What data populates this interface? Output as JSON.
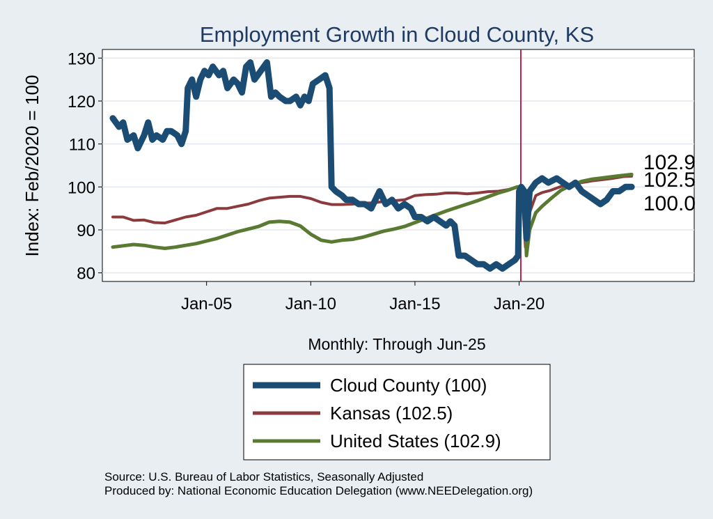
{
  "chart_data": {
    "type": "line",
    "title": "Employment Growth in Cloud  County, KS",
    "ylabel": "Index: Feb/2020 = 100",
    "xlabel": "Monthly: Through Jun-25",
    "ylim": [
      78,
      132
    ],
    "xlim": [
      2000.0,
      2028.4
    ],
    "yticks": [
      80,
      90,
      100,
      110,
      120,
      130
    ],
    "xticks": [
      {
        "value": 2005.0,
        "label": "Jan-05"
      },
      {
        "value": 2010.0,
        "label": "Jan-10"
      },
      {
        "value": 2015.0,
        "label": "Jan-15"
      },
      {
        "value": 2020.0,
        "label": "Jan-20"
      }
    ],
    "reference_line": {
      "x": 2020.08,
      "color": "#c0204a"
    },
    "series": [
      {
        "name": "Cloud  County (100)",
        "color": "#1b4c74",
        "width": 9,
        "end_label": "100.0",
        "points": [
          [
            2000.5,
            116
          ],
          [
            2000.8,
            114
          ],
          [
            2001.0,
            115
          ],
          [
            2001.2,
            111
          ],
          [
            2001.5,
            112
          ],
          [
            2001.7,
            109
          ],
          [
            2002.0,
            112
          ],
          [
            2002.2,
            115
          ],
          [
            2002.4,
            111
          ],
          [
            2002.6,
            112
          ],
          [
            2002.9,
            111
          ],
          [
            2003.1,
            113
          ],
          [
            2003.3,
            113
          ],
          [
            2003.6,
            112
          ],
          [
            2003.8,
            110
          ],
          [
            2004.0,
            113
          ],
          [
            2004.1,
            123
          ],
          [
            2004.3,
            125
          ],
          [
            2004.5,
            121
          ],
          [
            2004.7,
            125
          ],
          [
            2004.9,
            127
          ],
          [
            2005.1,
            126
          ],
          [
            2005.3,
            128
          ],
          [
            2005.6,
            126
          ],
          [
            2005.8,
            127
          ],
          [
            2006.0,
            123
          ],
          [
            2006.3,
            125
          ],
          [
            2006.5,
            124
          ],
          [
            2006.7,
            122
          ],
          [
            2006.9,
            128
          ],
          [
            2007.1,
            129
          ],
          [
            2007.3,
            125
          ],
          [
            2007.6,
            127
          ],
          [
            2007.9,
            129
          ],
          [
            2008.1,
            121
          ],
          [
            2008.3,
            122
          ],
          [
            2008.5,
            121
          ],
          [
            2008.8,
            120
          ],
          [
            2009.0,
            120
          ],
          [
            2009.3,
            121
          ],
          [
            2009.5,
            119
          ],
          [
            2009.7,
            121
          ],
          [
            2009.9,
            120
          ],
          [
            2010.1,
            124
          ],
          [
            2010.4,
            125
          ],
          [
            2010.7,
            126
          ],
          [
            2010.9,
            123
          ],
          [
            2011.0,
            100
          ],
          [
            2011.2,
            99
          ],
          [
            2011.5,
            98
          ],
          [
            2011.7,
            97
          ],
          [
            2012.0,
            97
          ],
          [
            2012.3,
            96
          ],
          [
            2012.6,
            96
          ],
          [
            2012.9,
            95
          ],
          [
            2013.1,
            97
          ],
          [
            2013.3,
            99
          ],
          [
            2013.6,
            96
          ],
          [
            2013.9,
            97
          ],
          [
            2014.2,
            95
          ],
          [
            2014.5,
            96
          ],
          [
            2014.8,
            95
          ],
          [
            2015.0,
            93
          ],
          [
            2015.3,
            93
          ],
          [
            2015.6,
            92
          ],
          [
            2015.9,
            93
          ],
          [
            2016.2,
            92
          ],
          [
            2016.5,
            91
          ],
          [
            2016.7,
            92
          ],
          [
            2016.9,
            91
          ],
          [
            2017.1,
            84
          ],
          [
            2017.4,
            84
          ],
          [
            2017.7,
            83
          ],
          [
            2018.0,
            82
          ],
          [
            2018.3,
            82
          ],
          [
            2018.6,
            81
          ],
          [
            2018.9,
            82
          ],
          [
            2019.2,
            81
          ],
          [
            2019.5,
            82
          ],
          [
            2019.8,
            83
          ],
          [
            2019.95,
            84
          ],
          [
            2020.0,
            99
          ],
          [
            2020.1,
            100
          ],
          [
            2020.25,
            99
          ],
          [
            2020.35,
            88
          ],
          [
            2020.5,
            99
          ],
          [
            2020.8,
            101
          ],
          [
            2021.1,
            102
          ],
          [
            2021.4,
            101
          ],
          [
            2021.8,
            102
          ],
          [
            2022.1,
            101
          ],
          [
            2022.4,
            100
          ],
          [
            2022.7,
            101
          ],
          [
            2023.0,
            99
          ],
          [
            2023.3,
            98
          ],
          [
            2023.6,
            97
          ],
          [
            2023.9,
            96
          ],
          [
            2024.2,
            97
          ],
          [
            2024.5,
            99
          ],
          [
            2024.8,
            99
          ],
          [
            2025.1,
            100
          ],
          [
            2025.4,
            100
          ]
        ]
      },
      {
        "name": "Kansas (102.5)",
        "color": "#8b3a3e",
        "width": 4,
        "end_label": "102.5",
        "points": [
          [
            2000.5,
            93
          ],
          [
            2001.0,
            93
          ],
          [
            2001.5,
            92.2
          ],
          [
            2002.0,
            92.3
          ],
          [
            2002.5,
            91.7
          ],
          [
            2003.0,
            91.6
          ],
          [
            2003.5,
            92.3
          ],
          [
            2004.0,
            93
          ],
          [
            2004.5,
            93.4
          ],
          [
            2005.0,
            94.2
          ],
          [
            2005.5,
            95
          ],
          [
            2006.0,
            95
          ],
          [
            2006.5,
            95.5
          ],
          [
            2007.0,
            96
          ],
          [
            2007.5,
            96.8
          ],
          [
            2008.0,
            97.4
          ],
          [
            2008.5,
            97.6
          ],
          [
            2009.0,
            97.8
          ],
          [
            2009.5,
            97.8
          ],
          [
            2010.0,
            97.3
          ],
          [
            2010.5,
            96.4
          ],
          [
            2011.0,
            95.9
          ],
          [
            2011.5,
            95.9
          ],
          [
            2012.0,
            96
          ],
          [
            2012.5,
            96.2
          ],
          [
            2013.0,
            96.3
          ],
          [
            2013.5,
            96.6
          ],
          [
            2014.0,
            96.8
          ],
          [
            2014.5,
            97.0
          ],
          [
            2015.0,
            98.0
          ],
          [
            2015.5,
            98.2
          ],
          [
            2016.0,
            98.3
          ],
          [
            2016.5,
            98.6
          ],
          [
            2017.0,
            98.6
          ],
          [
            2017.5,
            98.4
          ],
          [
            2018.0,
            98.6
          ],
          [
            2018.5,
            98.9
          ],
          [
            2019.0,
            99.0
          ],
          [
            2019.5,
            99.4
          ],
          [
            2019.9,
            100.0
          ],
          [
            2020.0,
            100
          ],
          [
            2020.15,
            98
          ],
          [
            2020.3,
            86
          ],
          [
            2020.5,
            94
          ],
          [
            2020.8,
            98
          ],
          [
            2021.1,
            98.7
          ],
          [
            2021.5,
            99.2
          ],
          [
            2022.0,
            100.1
          ],
          [
            2022.5,
            100.6
          ],
          [
            2023.0,
            101
          ],
          [
            2023.5,
            101.4
          ],
          [
            2024.0,
            101.7
          ],
          [
            2024.5,
            102.0
          ],
          [
            2025.0,
            102.4
          ],
          [
            2025.4,
            102.5
          ]
        ]
      },
      {
        "name": "United States (102.9)",
        "color": "#5a7a32",
        "width": 5,
        "end_label": "102.9",
        "points": [
          [
            2000.5,
            86.0
          ],
          [
            2001.0,
            86.3
          ],
          [
            2001.5,
            86.6
          ],
          [
            2002.0,
            86.4
          ],
          [
            2002.5,
            86.0
          ],
          [
            2003.0,
            85.7
          ],
          [
            2003.5,
            86.0
          ],
          [
            2004.0,
            86.4
          ],
          [
            2004.5,
            86.8
          ],
          [
            2005.0,
            87.4
          ],
          [
            2005.5,
            88.0
          ],
          [
            2006.0,
            88.8
          ],
          [
            2006.5,
            89.6
          ],
          [
            2007.0,
            90.2
          ],
          [
            2007.5,
            90.8
          ],
          [
            2008.0,
            91.8
          ],
          [
            2008.5,
            92.0
          ],
          [
            2009.0,
            91.8
          ],
          [
            2009.5,
            90.9
          ],
          [
            2010.0,
            89.0
          ],
          [
            2010.5,
            87.6
          ],
          [
            2011.0,
            87.2
          ],
          [
            2011.5,
            87.6
          ],
          [
            2012.0,
            87.8
          ],
          [
            2012.5,
            88.3
          ],
          [
            2013.0,
            89.0
          ],
          [
            2013.5,
            89.7
          ],
          [
            2014.0,
            90.2
          ],
          [
            2014.5,
            90.8
          ],
          [
            2015.0,
            91.7
          ],
          [
            2015.5,
            92.6
          ],
          [
            2016.0,
            93.5
          ],
          [
            2016.5,
            94.4
          ],
          [
            2017.0,
            95.2
          ],
          [
            2017.5,
            96.0
          ],
          [
            2018.0,
            96.8
          ],
          [
            2018.5,
            97.7
          ],
          [
            2019.0,
            98.6
          ],
          [
            2019.5,
            99.3
          ],
          [
            2019.9,
            100.0
          ],
          [
            2020.1,
            100
          ],
          [
            2020.25,
            98
          ],
          [
            2020.35,
            84
          ],
          [
            2020.5,
            90
          ],
          [
            2020.8,
            94
          ],
          [
            2021.1,
            95.5
          ],
          [
            2021.5,
            97.2
          ],
          [
            2022.0,
            99.2
          ],
          [
            2022.5,
            100.4
          ],
          [
            2023.0,
            101.3
          ],
          [
            2023.5,
            101.8
          ],
          [
            2024.0,
            102.1
          ],
          [
            2024.5,
            102.4
          ],
          [
            2025.0,
            102.7
          ],
          [
            2025.4,
            102.9
          ]
        ]
      }
    ]
  },
  "source_line": "Source: U.S. Bureau of Labor Statistics, Seasonally Adjusted",
  "produced_line": "Produced by: National Economic Education Delegation (www.NEEDelegation.org)"
}
